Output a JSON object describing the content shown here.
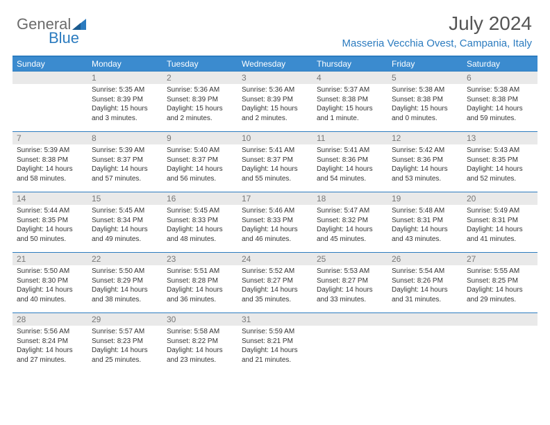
{
  "logo": {
    "text1": "General",
    "text2": "Blue"
  },
  "header": {
    "month": "July 2024",
    "location": "Masseria Vecchia Ovest, Campania, Italy"
  },
  "colors": {
    "accent": "#2b7bbf",
    "header_bg": "#3b8bcf",
    "daynum_bg": "#e9e9e9",
    "text": "#333333",
    "muted": "#777777"
  },
  "dayNames": [
    "Sunday",
    "Monday",
    "Tuesday",
    "Wednesday",
    "Thursday",
    "Friday",
    "Saturday"
  ],
  "weeks": [
    [
      {
        "n": "",
        "sr": "",
        "ss": "",
        "dl": ""
      },
      {
        "n": "1",
        "sr": "Sunrise: 5:35 AM",
        "ss": "Sunset: 8:39 PM",
        "dl": "Daylight: 15 hours and 3 minutes."
      },
      {
        "n": "2",
        "sr": "Sunrise: 5:36 AM",
        "ss": "Sunset: 8:39 PM",
        "dl": "Daylight: 15 hours and 2 minutes."
      },
      {
        "n": "3",
        "sr": "Sunrise: 5:36 AM",
        "ss": "Sunset: 8:39 PM",
        "dl": "Daylight: 15 hours and 2 minutes."
      },
      {
        "n": "4",
        "sr": "Sunrise: 5:37 AM",
        "ss": "Sunset: 8:38 PM",
        "dl": "Daylight: 15 hours and 1 minute."
      },
      {
        "n": "5",
        "sr": "Sunrise: 5:38 AM",
        "ss": "Sunset: 8:38 PM",
        "dl": "Daylight: 15 hours and 0 minutes."
      },
      {
        "n": "6",
        "sr": "Sunrise: 5:38 AM",
        "ss": "Sunset: 8:38 PM",
        "dl": "Daylight: 14 hours and 59 minutes."
      }
    ],
    [
      {
        "n": "7",
        "sr": "Sunrise: 5:39 AM",
        "ss": "Sunset: 8:38 PM",
        "dl": "Daylight: 14 hours and 58 minutes."
      },
      {
        "n": "8",
        "sr": "Sunrise: 5:39 AM",
        "ss": "Sunset: 8:37 PM",
        "dl": "Daylight: 14 hours and 57 minutes."
      },
      {
        "n": "9",
        "sr": "Sunrise: 5:40 AM",
        "ss": "Sunset: 8:37 PM",
        "dl": "Daylight: 14 hours and 56 minutes."
      },
      {
        "n": "10",
        "sr": "Sunrise: 5:41 AM",
        "ss": "Sunset: 8:37 PM",
        "dl": "Daylight: 14 hours and 55 minutes."
      },
      {
        "n": "11",
        "sr": "Sunrise: 5:41 AM",
        "ss": "Sunset: 8:36 PM",
        "dl": "Daylight: 14 hours and 54 minutes."
      },
      {
        "n": "12",
        "sr": "Sunrise: 5:42 AM",
        "ss": "Sunset: 8:36 PM",
        "dl": "Daylight: 14 hours and 53 minutes."
      },
      {
        "n": "13",
        "sr": "Sunrise: 5:43 AM",
        "ss": "Sunset: 8:35 PM",
        "dl": "Daylight: 14 hours and 52 minutes."
      }
    ],
    [
      {
        "n": "14",
        "sr": "Sunrise: 5:44 AM",
        "ss": "Sunset: 8:35 PM",
        "dl": "Daylight: 14 hours and 50 minutes."
      },
      {
        "n": "15",
        "sr": "Sunrise: 5:45 AM",
        "ss": "Sunset: 8:34 PM",
        "dl": "Daylight: 14 hours and 49 minutes."
      },
      {
        "n": "16",
        "sr": "Sunrise: 5:45 AM",
        "ss": "Sunset: 8:33 PM",
        "dl": "Daylight: 14 hours and 48 minutes."
      },
      {
        "n": "17",
        "sr": "Sunrise: 5:46 AM",
        "ss": "Sunset: 8:33 PM",
        "dl": "Daylight: 14 hours and 46 minutes."
      },
      {
        "n": "18",
        "sr": "Sunrise: 5:47 AM",
        "ss": "Sunset: 8:32 PM",
        "dl": "Daylight: 14 hours and 45 minutes."
      },
      {
        "n": "19",
        "sr": "Sunrise: 5:48 AM",
        "ss": "Sunset: 8:31 PM",
        "dl": "Daylight: 14 hours and 43 minutes."
      },
      {
        "n": "20",
        "sr": "Sunrise: 5:49 AM",
        "ss": "Sunset: 8:31 PM",
        "dl": "Daylight: 14 hours and 41 minutes."
      }
    ],
    [
      {
        "n": "21",
        "sr": "Sunrise: 5:50 AM",
        "ss": "Sunset: 8:30 PM",
        "dl": "Daylight: 14 hours and 40 minutes."
      },
      {
        "n": "22",
        "sr": "Sunrise: 5:50 AM",
        "ss": "Sunset: 8:29 PM",
        "dl": "Daylight: 14 hours and 38 minutes."
      },
      {
        "n": "23",
        "sr": "Sunrise: 5:51 AM",
        "ss": "Sunset: 8:28 PM",
        "dl": "Daylight: 14 hours and 36 minutes."
      },
      {
        "n": "24",
        "sr": "Sunrise: 5:52 AM",
        "ss": "Sunset: 8:27 PM",
        "dl": "Daylight: 14 hours and 35 minutes."
      },
      {
        "n": "25",
        "sr": "Sunrise: 5:53 AM",
        "ss": "Sunset: 8:27 PM",
        "dl": "Daylight: 14 hours and 33 minutes."
      },
      {
        "n": "26",
        "sr": "Sunrise: 5:54 AM",
        "ss": "Sunset: 8:26 PM",
        "dl": "Daylight: 14 hours and 31 minutes."
      },
      {
        "n": "27",
        "sr": "Sunrise: 5:55 AM",
        "ss": "Sunset: 8:25 PM",
        "dl": "Daylight: 14 hours and 29 minutes."
      }
    ],
    [
      {
        "n": "28",
        "sr": "Sunrise: 5:56 AM",
        "ss": "Sunset: 8:24 PM",
        "dl": "Daylight: 14 hours and 27 minutes."
      },
      {
        "n": "29",
        "sr": "Sunrise: 5:57 AM",
        "ss": "Sunset: 8:23 PM",
        "dl": "Daylight: 14 hours and 25 minutes."
      },
      {
        "n": "30",
        "sr": "Sunrise: 5:58 AM",
        "ss": "Sunset: 8:22 PM",
        "dl": "Daylight: 14 hours and 23 minutes."
      },
      {
        "n": "31",
        "sr": "Sunrise: 5:59 AM",
        "ss": "Sunset: 8:21 PM",
        "dl": "Daylight: 14 hours and 21 minutes."
      },
      {
        "n": "",
        "sr": "",
        "ss": "",
        "dl": ""
      },
      {
        "n": "",
        "sr": "",
        "ss": "",
        "dl": ""
      },
      {
        "n": "",
        "sr": "",
        "ss": "",
        "dl": ""
      }
    ]
  ]
}
